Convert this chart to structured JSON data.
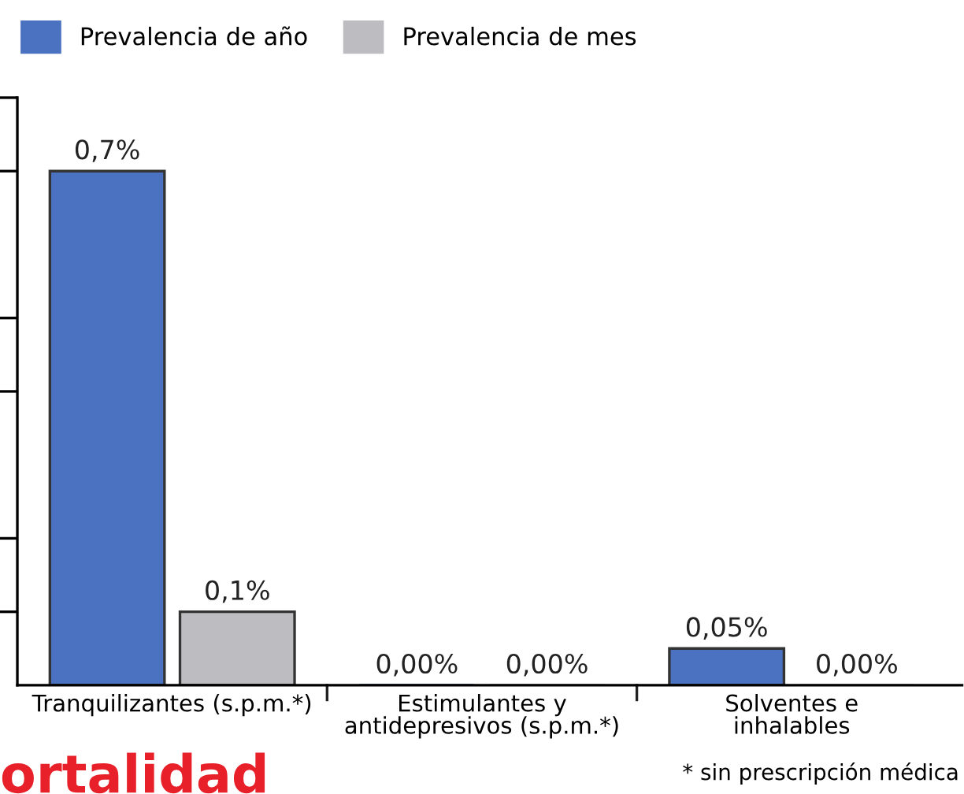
{
  "chart_data": {
    "type": "bar",
    "categories": [
      "Tranquilizantes (s.p.m.*)",
      "Estimulantes y\nantidepresivos (s.p.m.*)",
      "Solventes e\ninhalables"
    ],
    "series": [
      {
        "name": "Prevalencia de año",
        "color": "#4a72c0",
        "values": [
          0.7,
          0,
          0.05
        ],
        "value_labels": [
          "0,7%",
          "0,00%",
          "0,05%"
        ]
      },
      {
        "name": "Prevalencia de mes",
        "color": "#bdbdc1",
        "values": [
          0.1,
          0,
          0
        ],
        "value_labels": [
          "0,1%",
          "0,00%",
          "0,00%"
        ]
      }
    ],
    "ylim": [
      0,
      0.8
    ],
    "yticks": [
      {
        "value": 0.1,
        "label": null
      },
      {
        "value": 0.2,
        "label": null
      },
      {
        "value": 0.4,
        "label": null
      },
      {
        "value": 0.5,
        "label": null
      },
      {
        "value": 0.7,
        "label": null
      },
      {
        "value": 0.8,
        "label": null
      }
    ],
    "tick_labels": "x",
    "legend": "top left",
    "grid": false,
    "annotations": [
      "* sin prescripción médica",
      "ortalidad"
    ]
  }
}
